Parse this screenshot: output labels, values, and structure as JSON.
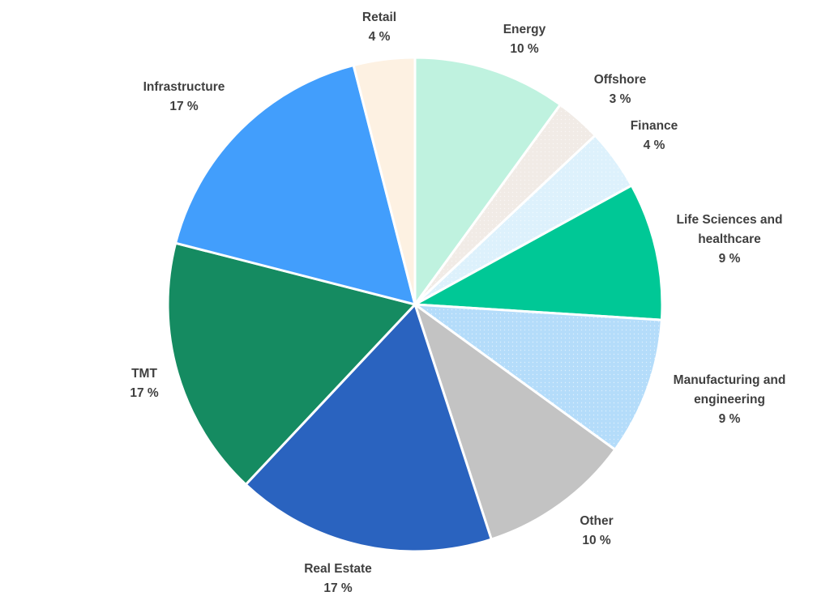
{
  "chart_data": {
    "type": "pie",
    "title": "",
    "start": "top, clockwise",
    "value_unit": "%",
    "slices": [
      {
        "label_lines": [
          "Energy"
        ],
        "value": 10,
        "value_label": "10 %",
        "color": "#bff2df",
        "pattern": "none"
      },
      {
        "label_lines": [
          "Offshore"
        ],
        "value": 3,
        "value_label": "3 %",
        "color": "#f1ebe6",
        "pattern": "dots"
      },
      {
        "label_lines": [
          "Finance"
        ],
        "value": 4,
        "value_label": "4 %",
        "color": "#ddf1fc",
        "pattern": "dots"
      },
      {
        "label_lines": [
          "Life Sciences and",
          "healthcare"
        ],
        "value": 9,
        "value_label": "9 %",
        "color": "#00c896",
        "pattern": "none"
      },
      {
        "label_lines": [
          "Manufacturing and",
          "engineering"
        ],
        "value": 9,
        "value_label": "9 %",
        "color": "#b4dcfa",
        "pattern": "dots"
      },
      {
        "label_lines": [
          "Other"
        ],
        "value": 10,
        "value_label": "10 %",
        "color": "#c3c3c3",
        "pattern": "none"
      },
      {
        "label_lines": [
          "Real Estate"
        ],
        "value": 17,
        "value_label": "17 %",
        "color": "#2a63bf",
        "pattern": "none"
      },
      {
        "label_lines": [
          "TMT"
        ],
        "value": 17,
        "value_label": "17 %",
        "color": "#158b61",
        "pattern": "none"
      },
      {
        "label_lines": [
          "Infrastructure"
        ],
        "value": 17,
        "value_label": "17 %",
        "color": "#429efc",
        "pattern": "none"
      },
      {
        "label_lines": [
          "Retail"
        ],
        "value": 4,
        "value_label": "4 %",
        "color": "#fdf1e2",
        "pattern": "none"
      }
    ]
  }
}
